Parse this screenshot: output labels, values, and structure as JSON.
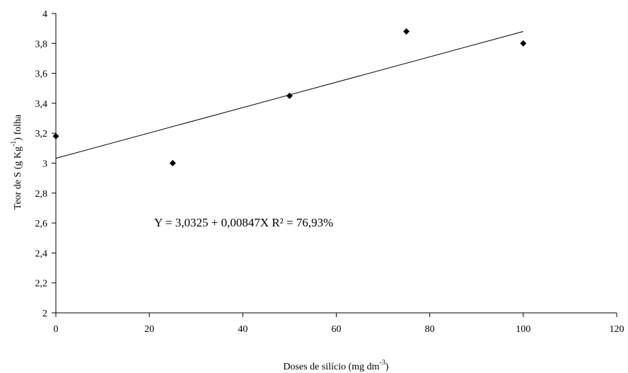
{
  "chart_data": {
    "type": "scatter",
    "title": "",
    "xlabel": "Doses de silício (mg dm-3)",
    "xlabel_parts": {
      "main": "Doses de silício (mg dm",
      "sup": "-3",
      "end": ")"
    },
    "ylabel": "Teor de S (g Kg-1) folha",
    "ylabel_parts": {
      "main": "Teor de S (g Kg",
      "sup": "-1",
      "end": ") folha"
    },
    "xlim": [
      0,
      120
    ],
    "ylim": [
      2,
      4
    ],
    "x_ticks": [
      0,
      20,
      40,
      60,
      80,
      100,
      120
    ],
    "y_ticks": [
      2,
      2.2,
      2.4,
      2.6,
      2.8,
      3,
      3.2,
      3.4,
      3.6,
      3.8,
      4
    ],
    "x_tick_labels": [
      "0",
      "20",
      "40",
      "60",
      "80",
      "100",
      "120"
    ],
    "y_tick_labels": [
      "2",
      "2,2",
      "2,4",
      "2,6",
      "2,8",
      "3",
      "3,2",
      "3,4",
      "3,6",
      "3,8",
      "4"
    ],
    "grid": false,
    "series": [
      {
        "marker": "diamond",
        "x": [
          0,
          25,
          50,
          75,
          100
        ],
        "y": [
          3.18,
          3.0,
          3.45,
          3.88,
          3.8
        ]
      }
    ],
    "trendline": {
      "intercept": 3.0325,
      "slope": 0.00847,
      "x_range": [
        0,
        100
      ]
    },
    "annotation": "Y = 3,0325 + 0,00847X  R² = 76,93%",
    "colors": {
      "points": "#000000",
      "line": "#000000",
      "axes": "#000000"
    }
  }
}
